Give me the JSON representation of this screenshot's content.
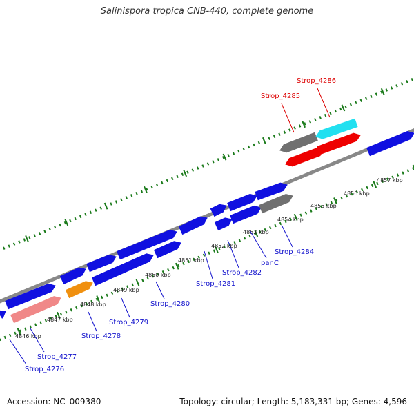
{
  "title": "Salinispora tropica CNB-440, complete genome",
  "footer": {
    "accession": "Accession: NC_009380",
    "info": "Topology: circular; Length: 5,183,331 bp; Genes: 4,596"
  },
  "colors": {
    "blue": "#1010e0",
    "gray": "#707070",
    "cyan": "#22e0f0",
    "red": "#ee0000",
    "orange": "#f09010",
    "pink": "#f08888",
    "tick": "#1a7a1a",
    "label_blue": "#1010cc",
    "label_red": "#dd0000",
    "backbone": "#888888"
  },
  "scale": {
    "ticks": [
      {
        "kb": "4846 kbp"
      },
      {
        "kb": "4847 kbp"
      },
      {
        "kb": "4848 kbp"
      },
      {
        "kb": "4849 kbp"
      },
      {
        "kb": "4850 kbp"
      },
      {
        "kb": "4851 kbp"
      },
      {
        "kb": "4852 kbp"
      },
      {
        "kb": "4853 kbp"
      },
      {
        "kb": "4854 kbp"
      },
      {
        "kb": "4855 kbp"
      },
      {
        "kb": "4856 kbp"
      },
      {
        "kb": "4857 kbp"
      }
    ]
  },
  "genes": [
    {
      "name": "Strop_4276",
      "strand": "forward",
      "color": "blue"
    },
    {
      "name": "Strop_4277",
      "strand": "forward",
      "color": "pink"
    },
    {
      "name": "Strop_4278",
      "strand": "forward",
      "color": "orange"
    },
    {
      "name": "Strop_4279",
      "strand": "forward",
      "color": "blue"
    },
    {
      "name": "Strop_4280",
      "strand": "forward",
      "color": "blue"
    },
    {
      "name": "Strop_4281",
      "strand": "forward",
      "color": "blue"
    },
    {
      "name": "Strop_4282",
      "strand": "forward",
      "color": "blue"
    },
    {
      "name": "panC",
      "strand": "forward",
      "color": "blue"
    },
    {
      "name": "Strop_4284",
      "strand": "forward",
      "color": "gray"
    },
    {
      "name": "Strop_4285",
      "strand": "reverse",
      "color": "gray"
    },
    {
      "name": "Strop_4286",
      "strand": "reverse",
      "color": "cyan"
    }
  ],
  "label_texts": {
    "Strop_4276": "Strop_4276",
    "Strop_4277": "Strop_4277",
    "Strop_4278": "Strop_4278",
    "Strop_4279": "Strop_4279",
    "Strop_4280": "Strop_4280",
    "Strop_4281": "Strop_4281",
    "Strop_4282": "Strop_4282",
    "panC": "panC",
    "Strop_4284": "Strop_4284",
    "Strop_4285": "Strop_4285",
    "Strop_4286": "Strop_4286"
  }
}
